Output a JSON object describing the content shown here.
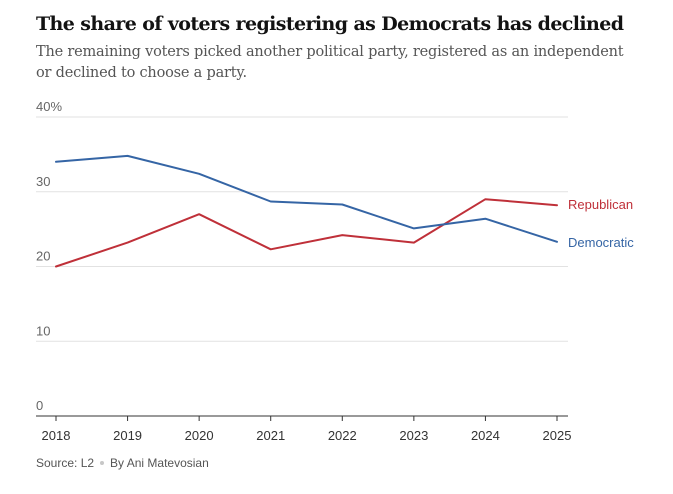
{
  "header": {
    "title": "The share of voters registering as Democrats has declined",
    "subtitle": "The remaining voters picked another political party, registered as an independent or declined to choose a party."
  },
  "chart_data": {
    "type": "line",
    "title": "The share of voters registering as Democrats has declined",
    "subtitle": "The remaining voters picked another political party, registered as an independent or declined to choose a party.",
    "x": [
      2018,
      2019,
      2020,
      2021,
      2022,
      2023,
      2024,
      2025
    ],
    "ylim": [
      0,
      40
    ],
    "yticks": [
      0,
      10,
      20,
      30,
      40
    ],
    "ytick_labels": [
      "0",
      "10",
      "20",
      "30",
      "40%"
    ],
    "grid": true,
    "legend": "direct labels at right end of lines",
    "series": [
      {
        "name": "Republican",
        "color": "#bf3039",
        "values": [
          20.0,
          23.2,
          27.0,
          22.3,
          24.2,
          23.2,
          29.0,
          28.2
        ]
      },
      {
        "name": "Democratic",
        "color": "#3565a5",
        "values": [
          34.0,
          34.8,
          32.4,
          28.7,
          28.3,
          25.1,
          26.4,
          23.3
        ]
      }
    ]
  },
  "footer": {
    "source": "Source: L2",
    "byline": "By Ani Matevosian"
  }
}
